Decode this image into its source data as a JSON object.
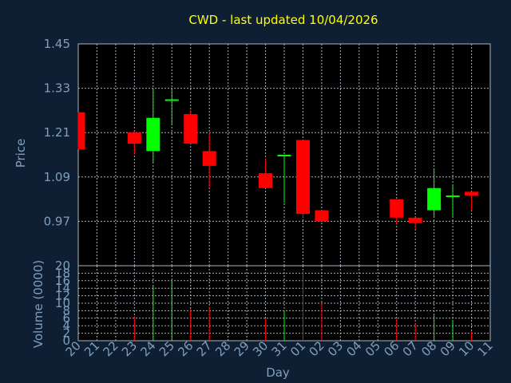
{
  "colors": {
    "background": "#0f1f33",
    "plot_background": "#000000",
    "grid": "#a8b3bd",
    "axis_text": "#7f9fbf",
    "title": "#ffff00",
    "up": "#00ff00",
    "down": "#ff0000"
  },
  "chart_data": [
    {
      "type": "candlestick",
      "title": "CWD - last updated 10/04/2026",
      "ylabel": "Price",
      "ylim": [
        0.85,
        1.45
      ],
      "yticks": [
        "1.45",
        "1.33",
        "1.21",
        "1.09",
        "0.97"
      ],
      "grid": true,
      "categories": [
        "20",
        "21",
        "22",
        "23",
        "24",
        "25",
        "26",
        "27",
        "28",
        "29",
        "30",
        "31",
        "01",
        "02",
        "03",
        "04",
        "05",
        "06",
        "07",
        "08",
        "09",
        "10",
        "11"
      ],
      "candles": [
        {
          "day": "20",
          "open": 1.265,
          "high": 1.265,
          "low": 1.165,
          "close": 1.165
        },
        {
          "day": "23",
          "open": 1.21,
          "high": 1.215,
          "low": 1.15,
          "close": 1.18
        },
        {
          "day": "24",
          "open": 1.16,
          "high": 1.33,
          "low": 1.13,
          "close": 1.25
        },
        {
          "day": "25",
          "open": 1.3,
          "high": 1.33,
          "low": 1.23,
          "close": 1.3
        },
        {
          "day": "26",
          "open": 1.26,
          "high": 1.27,
          "low": 1.18,
          "close": 1.18
        },
        {
          "day": "27",
          "open": 1.16,
          "high": 1.21,
          "low": 1.06,
          "close": 1.12
        },
        {
          "day": "30",
          "open": 1.1,
          "high": 1.14,
          "low": 1.06,
          "close": 1.06
        },
        {
          "day": "31",
          "open": 1.15,
          "high": 1.15,
          "low": 1.02,
          "close": 1.15
        },
        {
          "day": "01",
          "open": 1.19,
          "high": 1.19,
          "low": 0.98,
          "close": 0.99
        },
        {
          "day": "02",
          "open": 1.0,
          "high": 1.0,
          "low": 0.97,
          "close": 0.97
        },
        {
          "day": "06",
          "open": 1.03,
          "high": 1.03,
          "low": 0.96,
          "close": 0.98
        },
        {
          "day": "07",
          "open": 0.98,
          "high": 0.98,
          "low": 0.95,
          "close": 0.965
        },
        {
          "day": "08",
          "open": 1.0,
          "high": 1.11,
          "low": 0.98,
          "close": 1.06
        },
        {
          "day": "09",
          "open": 1.04,
          "high": 1.07,
          "low": 0.98,
          "close": 1.04
        },
        {
          "day": "10",
          "open": 1.05,
          "high": 1.05,
          "low": 1.0,
          "close": 1.04
        }
      ]
    },
    {
      "type": "bar",
      "ylabel": "Volume (0000)",
      "xlabel": "Day",
      "ylim": [
        0,
        20
      ],
      "yticks": [
        "20",
        "18",
        "16",
        "14",
        "12",
        "10",
        "8",
        "6",
        "4",
        "2",
        "0"
      ],
      "grid": true,
      "categories": [
        "20",
        "21",
        "22",
        "23",
        "24",
        "25",
        "26",
        "27",
        "28",
        "29",
        "30",
        "31",
        "01",
        "02",
        "03",
        "04",
        "05",
        "06",
        "07",
        "08",
        "09",
        "10",
        "11"
      ],
      "volumes": [
        {
          "day": "23",
          "value": 6.5,
          "dir": "down"
        },
        {
          "day": "24",
          "value": 14.5,
          "dir": "up"
        },
        {
          "day": "25",
          "value": 16,
          "dir": "up"
        },
        {
          "day": "26",
          "value": 8.5,
          "dir": "down"
        },
        {
          "day": "27",
          "value": 9,
          "dir": "down"
        },
        {
          "day": "30",
          "value": 6,
          "dir": "down"
        },
        {
          "day": "31",
          "value": 8,
          "dir": "up"
        },
        {
          "day": "01",
          "value": 18.5,
          "dir": "down"
        },
        {
          "day": "02",
          "value": 10,
          "dir": "down"
        },
        {
          "day": "06",
          "value": 6,
          "dir": "down"
        },
        {
          "day": "07",
          "value": 4.5,
          "dir": "down"
        },
        {
          "day": "08",
          "value": 7,
          "dir": "up"
        },
        {
          "day": "09",
          "value": 5.5,
          "dir": "up"
        },
        {
          "day": "10",
          "value": 2.5,
          "dir": "down"
        }
      ]
    }
  ]
}
